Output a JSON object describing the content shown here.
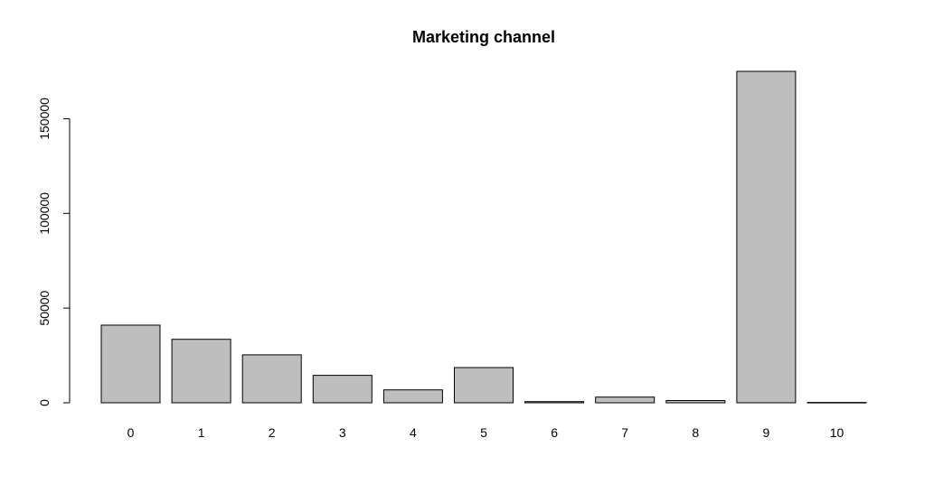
{
  "chart_data": {
    "type": "bar",
    "title": "Marketing channel",
    "xlabel": "",
    "ylabel": "",
    "categories": [
      "0",
      "1",
      "2",
      "3",
      "4",
      "5",
      "6",
      "7",
      "8",
      "9",
      "10"
    ],
    "values": [
      41000,
      33500,
      25300,
      14500,
      6800,
      18600,
      600,
      3000,
      1200,
      175000,
      200
    ],
    "ylim": [
      0,
      175000
    ],
    "yticks": [
      0,
      50000,
      100000,
      150000
    ],
    "ytick_labels": [
      "0",
      "50000",
      "100000",
      "150000"
    ],
    "bar_color": "#bebebe",
    "bar_edge_color": "#000000",
    "grid": false,
    "legend": "none"
  }
}
